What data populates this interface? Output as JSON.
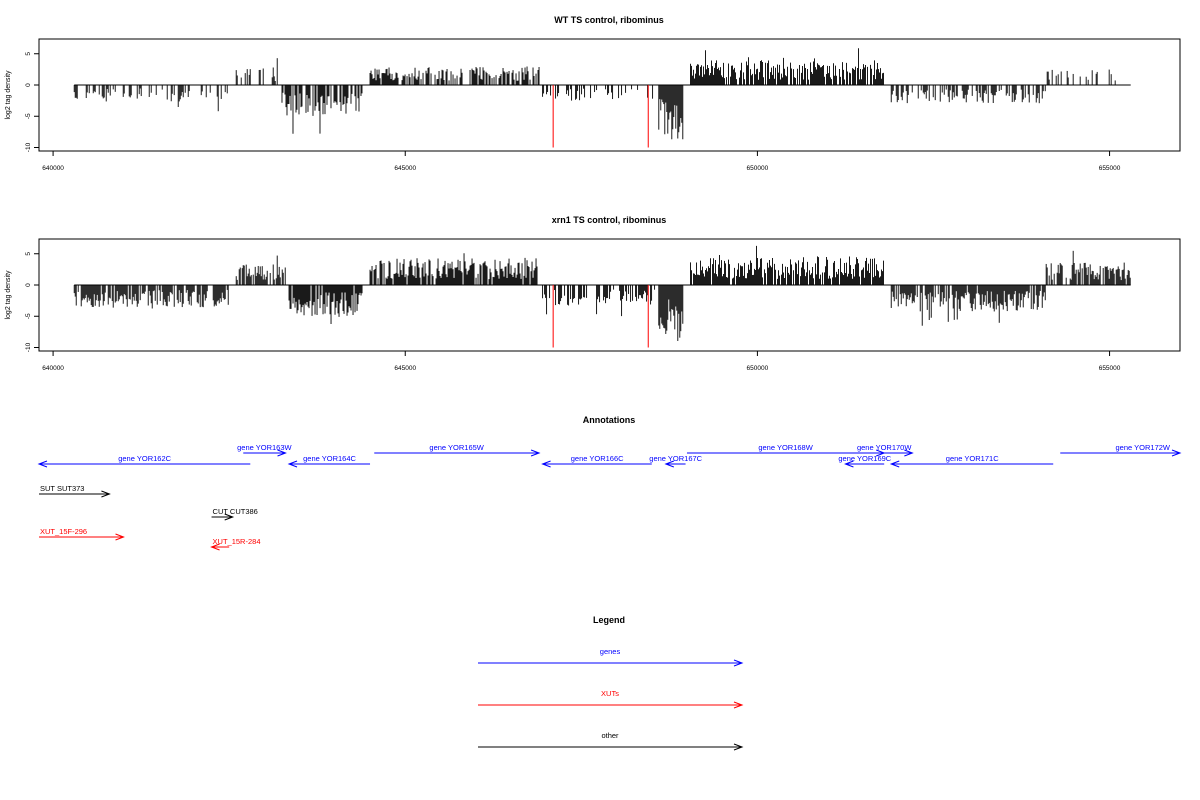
{
  "chart_data": [
    {
      "type": "bar",
      "title": "WT TS control, ribominus",
      "ylabel": "log2 tag density",
      "xlim": [
        639800,
        656000
      ],
      "ylim": [
        -10,
        7
      ],
      "x_ticks": [
        "640000",
        "645000",
        "650000",
        "655000"
      ],
      "y_ticks": [
        "-10",
        "-5",
        "0",
        "5"
      ],
      "series": [
        {
          "segment": [
            640300,
            642500
          ],
          "sign": -1,
          "mean": 1.6,
          "density": 0.3,
          "seed": 11
        },
        {
          "segment": [
            642600,
            643200
          ],
          "sign": 1,
          "mean": 1.8,
          "density": 0.3,
          "seed": 12
        },
        {
          "segment": [
            643250,
            644400
          ],
          "sign": -1,
          "mean": 3.0,
          "density": 0.8,
          "seed": 13
        },
        {
          "segment": [
            644500,
            646900
          ],
          "sign": 1,
          "mean": 1.8,
          "density": 0.7,
          "seed": 14
        },
        {
          "segment": [
            646950,
            648550
          ],
          "sign": -1,
          "mean": 1.6,
          "density": 0.35,
          "seed": 15
        },
        {
          "segment": [
            648600,
            648950
          ],
          "sign": -1,
          "mean": 5.5,
          "density": 1.0,
          "seed": 16
        },
        {
          "segment": [
            649050,
            651800
          ],
          "sign": 1,
          "mean": 2.4,
          "density": 0.85,
          "seed": 17
        },
        {
          "segment": [
            651900,
            654100
          ],
          "sign": -1,
          "mean": 1.8,
          "density": 0.6,
          "seed": 18
        },
        {
          "segment": [
            654100,
            655300
          ],
          "sign": 1,
          "mean": 1.5,
          "density": 0.2,
          "seed": 19
        }
      ],
      "red_lines": [
        647100,
        648450
      ]
    },
    {
      "type": "bar",
      "title": "xrn1 TS control, ribominus",
      "ylabel": "log2 tag density",
      "xlim": [
        639800,
        656000
      ],
      "ylim": [
        -10,
        7
      ],
      "x_ticks": [
        "640000",
        "645000",
        "650000",
        "655000"
      ],
      "y_ticks": [
        "-10",
        "-5",
        "0",
        "5"
      ],
      "series": [
        {
          "segment": [
            640300,
            642500
          ],
          "sign": -1,
          "mean": 2.2,
          "density": 0.75,
          "seed": 21
        },
        {
          "segment": [
            642600,
            643300
          ],
          "sign": 1,
          "mean": 2.0,
          "density": 0.8,
          "seed": 22
        },
        {
          "segment": [
            643350,
            644400
          ],
          "sign": -1,
          "mean": 3.0,
          "density": 0.9,
          "seed": 23
        },
        {
          "segment": [
            644500,
            646900
          ],
          "sign": 1,
          "mean": 2.6,
          "density": 0.85,
          "seed": 24
        },
        {
          "segment": [
            646950,
            648550
          ],
          "sign": -1,
          "mean": 2.0,
          "density": 0.55,
          "seed": 25
        },
        {
          "segment": [
            648600,
            648950
          ],
          "sign": -1,
          "mean": 5.5,
          "density": 1.0,
          "seed": 26
        },
        {
          "segment": [
            649050,
            651800
          ],
          "sign": 1,
          "mean": 2.8,
          "density": 0.9,
          "seed": 27
        },
        {
          "segment": [
            651900,
            654100
          ],
          "sign": -1,
          "mean": 2.6,
          "density": 0.85,
          "seed": 28
        },
        {
          "segment": [
            654100,
            655300
          ],
          "sign": 1,
          "mean": 2.2,
          "density": 0.75,
          "seed": 29
        }
      ],
      "red_lines": [
        647100,
        648450
      ]
    }
  ],
  "annotations": {
    "title": "Annotations",
    "items": [
      {
        "label": "gene YOR162C",
        "color": "#0000ff",
        "start": 639800,
        "end": 642800,
        "dir": "left",
        "row": 1
      },
      {
        "label": "gene YOR163W",
        "color": "#0000ff",
        "start": 642700,
        "end": 643300,
        "dir": "right",
        "row": 0
      },
      {
        "label": "gene YOR164C",
        "color": "#0000ff",
        "start": 643350,
        "end": 644500,
        "dir": "left",
        "row": 1
      },
      {
        "label": "gene YOR165W",
        "color": "#0000ff",
        "start": 644560,
        "end": 646900,
        "dir": "right",
        "row": 0
      },
      {
        "label": "gene YOR166C",
        "color": "#0000ff",
        "start": 646950,
        "end": 648500,
        "dir": "left",
        "row": 1
      },
      {
        "label": "gene YOR167C",
        "color": "#0000ff",
        "start": 648700,
        "end": 648980,
        "dir": "left",
        "row": 1
      },
      {
        "label": "gene YOR168W",
        "color": "#0000ff",
        "start": 649000,
        "end": 651800,
        "dir": "right",
        "row": 0
      },
      {
        "label": "gene YOR170W",
        "color": "#0000ff",
        "start": 651400,
        "end": 652200,
        "dir": "right",
        "row": 0
      },
      {
        "label": "gene YOR169C",
        "color": "#0000ff",
        "start": 651250,
        "end": 651800,
        "dir": "left",
        "row": 1
      },
      {
        "label": "gene YOR171C",
        "color": "#0000ff",
        "start": 651900,
        "end": 654200,
        "dir": "left",
        "row": 1
      },
      {
        "label": "gene YOR172W",
        "color": "#0000ff",
        "start": 654300,
        "end": 656000,
        "dir": "right",
        "row": 0
      },
      {
        "label": "SUT SUT373",
        "color": "#000000",
        "start": 639800,
        "end": 640800,
        "dir": "right",
        "row": 2
      },
      {
        "label": "CUT CUT386",
        "color": "#000000",
        "start": 642250,
        "end": 642550,
        "dir": "right",
        "row": 3
      },
      {
        "label": "XUT_15F-296",
        "color": "#ff0000",
        "start": 639800,
        "end": 641000,
        "dir": "right",
        "row": 4
      },
      {
        "label": "XUT_15R-284",
        "color": "#ff0000",
        "start": 642250,
        "end": 642500,
        "dir": "left",
        "row": 5
      }
    ]
  },
  "legend": {
    "title": "Legend",
    "items": [
      {
        "label": "genes",
        "color": "#0000ff"
      },
      {
        "label": "XUTs",
        "color": "#ff0000"
      },
      {
        "label": "other",
        "color": "#000000"
      }
    ]
  }
}
